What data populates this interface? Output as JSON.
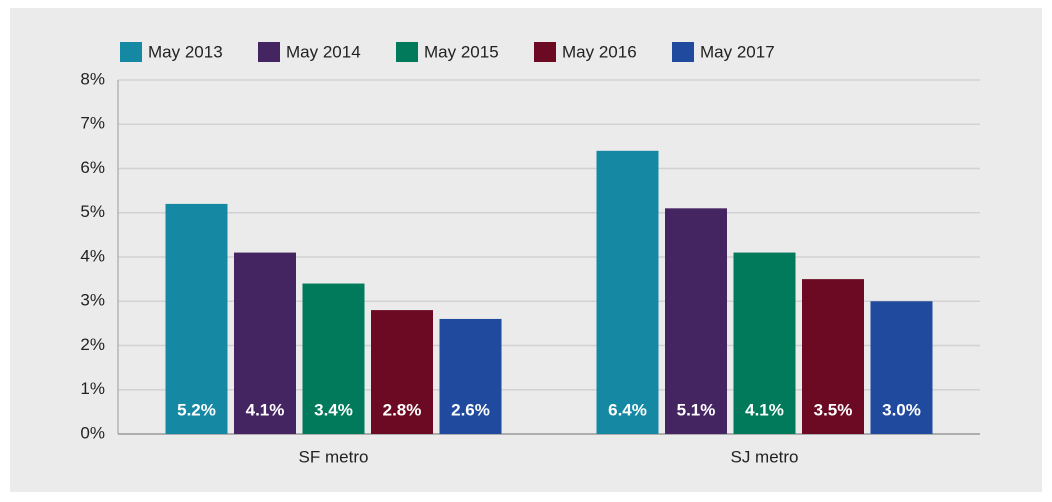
{
  "chart_data": {
    "type": "bar",
    "categories": [
      "SF metro",
      "SJ metro"
    ],
    "series": [
      {
        "name": "May 2013",
        "color": "#1589a3",
        "values": [
          5.2,
          6.4
        ],
        "value_labels": [
          "5.2%",
          "6.4%"
        ]
      },
      {
        "name": "May 2014",
        "color": "#452462",
        "values": [
          4.1,
          5.1
        ],
        "value_labels": [
          "4.1%",
          "5.1%"
        ]
      },
      {
        "name": "May 2015",
        "color": "#007a5a",
        "values": [
          3.4,
          4.1
        ],
        "value_labels": [
          "3.4%",
          "4.1%"
        ]
      },
      {
        "name": "May 2016",
        "color": "#6d0a23",
        "values": [
          2.8,
          3.5
        ],
        "value_labels": [
          "2.8%",
          "3.5%"
        ]
      },
      {
        "name": "May 2017",
        "color": "#1f4a9e",
        "values": [
          2.6,
          3.0
        ],
        "value_labels": [
          "2.6%",
          "3.0%"
        ]
      }
    ],
    "ylim": [
      0,
      8
    ],
    "yticks": [
      {
        "value": 0,
        "label": "0%"
      },
      {
        "value": 1,
        "label": "1%"
      },
      {
        "value": 2,
        "label": "2%"
      },
      {
        "value": 3,
        "label": "3%"
      },
      {
        "value": 4,
        "label": "4%"
      },
      {
        "value": 5,
        "label": "5%"
      },
      {
        "value": 6,
        "label": "6%"
      },
      {
        "value": 7,
        "label": "7%"
      },
      {
        "value": 8,
        "label": "8%"
      }
    ],
    "grid": true,
    "legend": "top"
  }
}
